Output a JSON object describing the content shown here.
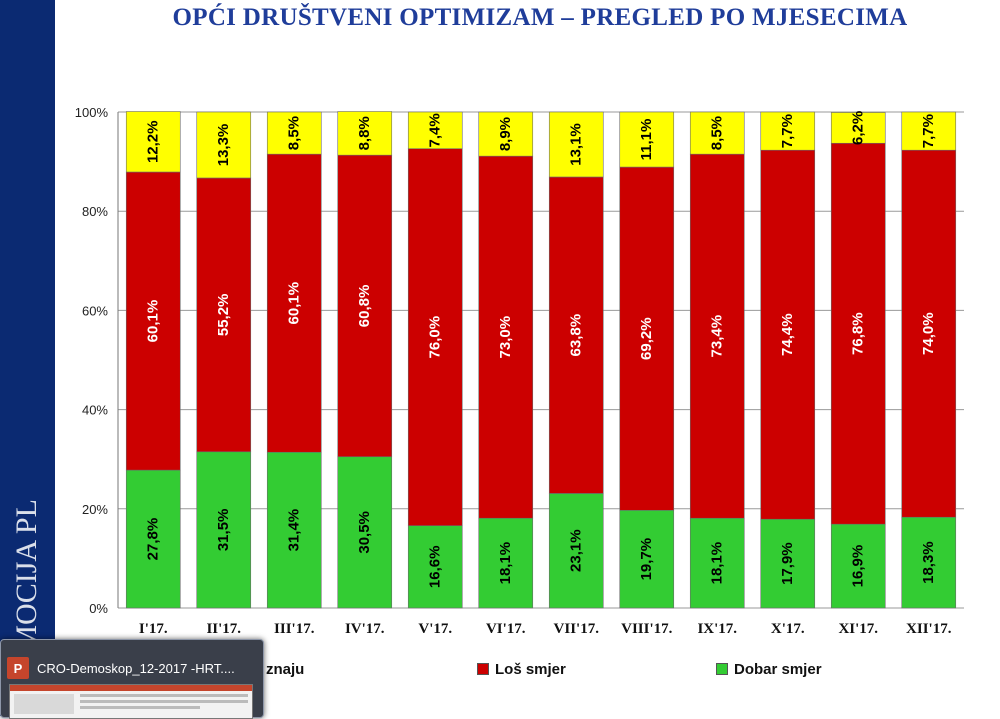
{
  "title": "OPĆI DRUŠTVENI OPTIMIZAM – PREGLED PO MJESECIMA",
  "brand_text": "PROMOCIJA PLUS",
  "colors": {
    "dobar": "#33cc33",
    "los": "#cc0000",
    "ne_znaju": "#ffff00",
    "title": "#1f3d9a",
    "sidebar": "#0b2a72"
  },
  "chart_data": {
    "type": "bar",
    "stacked": true,
    "percent": true,
    "categories": [
      "I'17.",
      "II'17.",
      "III'17.",
      "IV'17.",
      "V'17.",
      "VI'17.",
      "VII'17.",
      "VIII'17.",
      "IX'17.",
      "X'17.",
      "XI'17.",
      "XII'17."
    ],
    "series": [
      {
        "name": "Dobar smjer",
        "values": [
          27.8,
          31.5,
          31.4,
          30.5,
          16.6,
          18.1,
          23.1,
          19.7,
          18.1,
          17.9,
          16.9,
          18.3
        ],
        "labels": [
          "27,8%",
          "31,5%",
          "31,4%",
          "30,5%",
          "16,6%",
          "18,1%",
          "23,1%",
          "19,7%",
          "18,1%",
          "17,9%",
          "16,9%",
          "18,3%"
        ]
      },
      {
        "name": "Loš smjer",
        "values": [
          60.1,
          55.2,
          60.1,
          60.8,
          76.0,
          73.0,
          63.8,
          69.2,
          73.4,
          74.4,
          76.8,
          74.0
        ],
        "labels": [
          "60,1%",
          "55,2%",
          "60,1%",
          "60,8%",
          "76,0%",
          "73,0%",
          "63,8%",
          "69,2%",
          "73,4%",
          "74,4%",
          "76,8%",
          "74,0%"
        ]
      },
      {
        "name": "znaju",
        "values": [
          12.2,
          13.3,
          8.5,
          8.8,
          7.4,
          8.9,
          13.1,
          11.1,
          8.5,
          7.7,
          6.2,
          7.7
        ],
        "labels": [
          "12,2%",
          "13,3%",
          "8,5%",
          "8,8%",
          "7,4%",
          "8,9%",
          "13,1%",
          "11,1%",
          "8,5%",
          "7,7%",
          "6,2%",
          "7,7%"
        ]
      }
    ],
    "yticks": [
      "0%",
      "20%",
      "40%",
      "60%",
      "80%",
      "100%"
    ],
    "ylim": [
      0,
      100
    ],
    "grid": true,
    "legend": "bottom"
  },
  "legend": {
    "ne_znaju": "znaju",
    "los": "Loš smjer",
    "dobar": "Dobar smjer"
  },
  "taskbar": {
    "icon_text": "P",
    "title": "CRO-Demoskop_12-2017 -HRT...."
  }
}
